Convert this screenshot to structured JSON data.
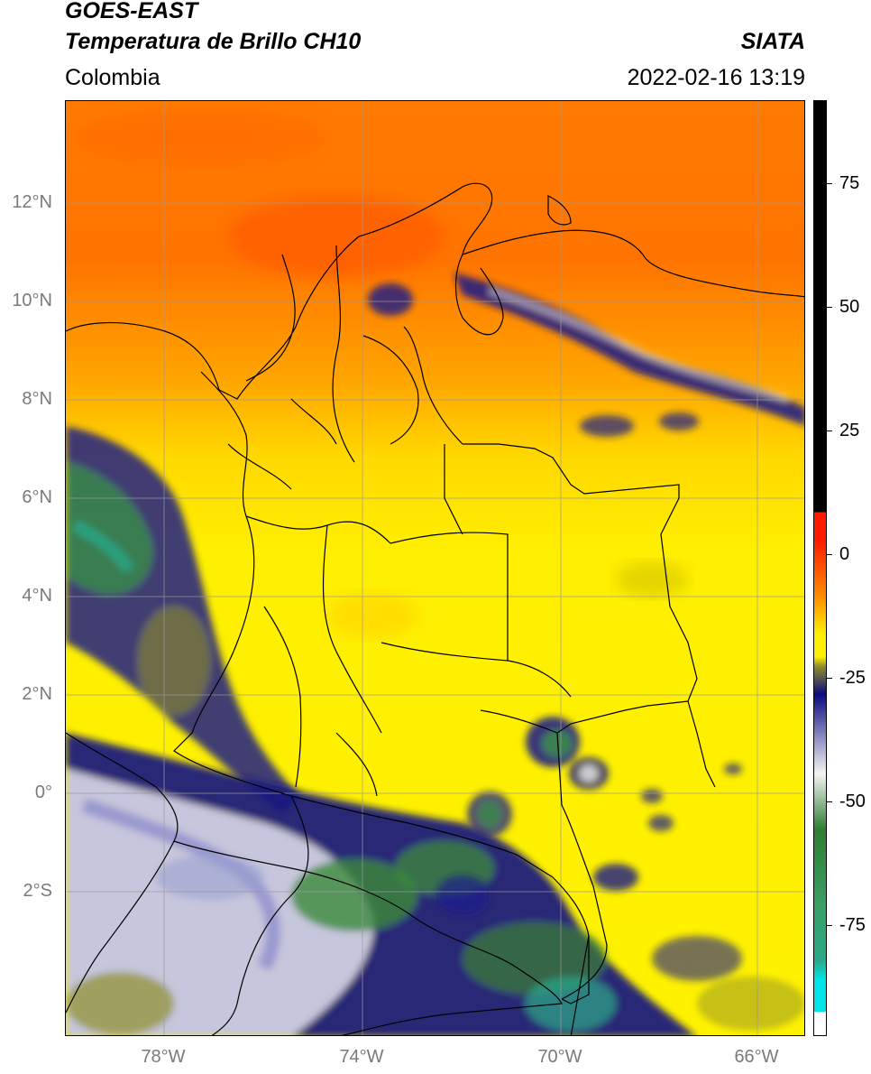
{
  "header": {
    "title_line1": "GOES-EAST",
    "title_line2": "Temperatura de Brillo CH10",
    "provider": "SIATA",
    "region": "Colombia",
    "timestamp": "2022-02-16 13:19"
  },
  "map": {
    "lat_labels": [
      "12°N",
      "10°N",
      "8°N",
      "6°N",
      "4°N",
      "2°N",
      "0°",
      "2°S"
    ],
    "lon_labels": [
      "78°W",
      "74°W",
      "70°W",
      "66°W"
    ],
    "gridline_color": "#9a9a9a",
    "border_color": "#000000"
  },
  "colorbar": {
    "tick_labels": [
      "75",
      "50",
      "25",
      "0",
      "-25",
      "-50",
      "-75"
    ],
    "colors": {
      "top_black": "#000000",
      "red": "#ff1a00",
      "orange": "#ff8c00",
      "yellow": "#ffee00",
      "olive": "#8f8f2a",
      "navy": "#0a0a80",
      "white": "#f4f4f4",
      "green": "#2e7d32",
      "teal": "#2aa889",
      "cyan": "#00e5e5"
    }
  }
}
